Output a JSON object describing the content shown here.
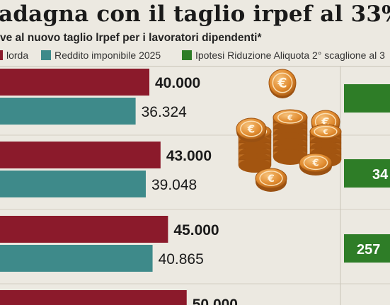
{
  "title": "adagna con il taglio irpef al 33%",
  "subtitle": "ve al nuovo taglio lrpef per i lavoratori dipendenti*",
  "legend": [
    {
      "label": "lorda",
      "color": "#8b1a2b"
    },
    {
      "label": "Reddito imponibile 2025",
      "color": "#3e8a8a"
    },
    {
      "label": "Ipotesi Riduzione Aliquota 2° scaglione al 3",
      "color": "#2e7d27"
    }
  ],
  "chart_data": {
    "type": "bar",
    "series": [
      {
        "name": "lorda",
        "color": "#8b1a2b",
        "values": [
          40000,
          43000,
          45000,
          50000
        ],
        "labels": [
          "40.000",
          "43.000",
          "45.000",
          "50.000"
        ]
      },
      {
        "name": "Reddito imponibile 2025",
        "color": "#3e8a8a",
        "values": [
          36324,
          39048,
          40865
        ],
        "labels": [
          "36.324",
          "39.048",
          "40.865"
        ]
      },
      {
        "name": "Ipotesi Riduzione Aliquota 2° scaglione al 3",
        "color": "#2e7d27",
        "values": [
          34,
          257
        ],
        "labels": [
          "34",
          "257"
        ]
      }
    ]
  }
}
